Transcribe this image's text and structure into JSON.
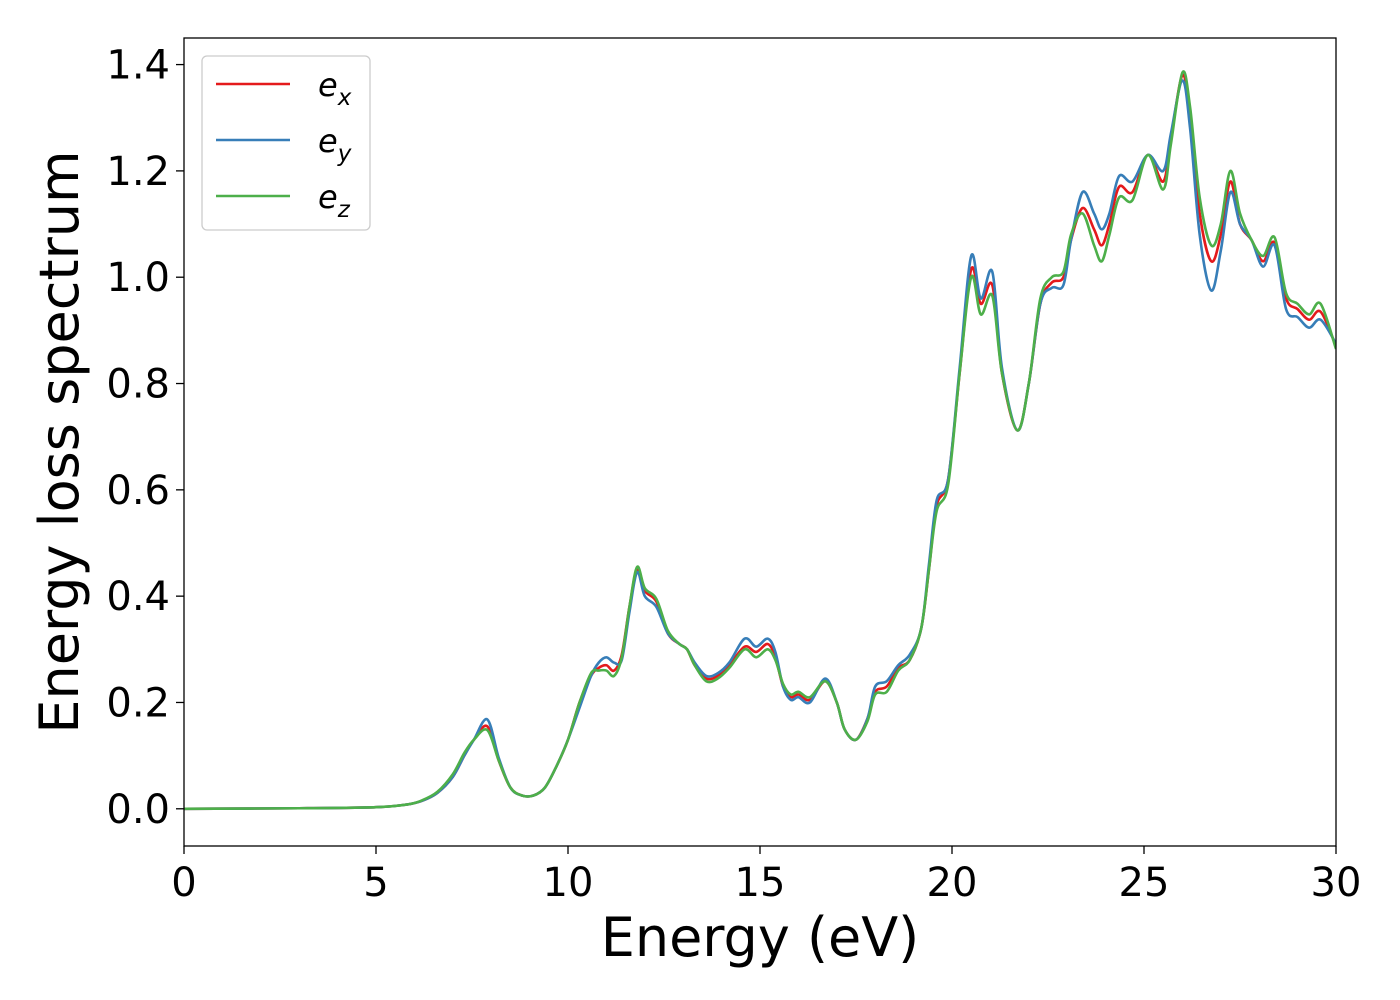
{
  "chart_data": {
    "type": "line",
    "title": "",
    "xlabel": "Energy (eV)",
    "ylabel": "Energy loss spectrum",
    "xlim": [
      0,
      30
    ],
    "ylim": [
      -0.07,
      1.45
    ],
    "xticks": [
      0,
      5,
      10,
      15,
      20,
      25,
      30
    ],
    "yticks": [
      0.0,
      0.2,
      0.4,
      0.6,
      0.8,
      1.0,
      1.2,
      1.4
    ],
    "xtick_labels": [
      "0",
      "5",
      "10",
      "15",
      "20",
      "25",
      "30"
    ],
    "ytick_labels": [
      "0.0",
      "0.2",
      "0.4",
      "0.6",
      "0.8",
      "1.0",
      "1.2",
      "1.4"
    ],
    "grid": false,
    "legend_position": "top-left",
    "series": [
      {
        "name": "e",
        "subscript": "x",
        "color": "#e41a1c",
        "x": [
          0,
          3,
          5,
          5.8,
          6.2,
          6.6,
          7.0,
          7.3,
          7.55,
          7.9,
          8.2,
          8.5,
          8.8,
          9.1,
          9.4,
          9.7,
          10.0,
          10.3,
          10.6,
          10.8,
          11.0,
          11.2,
          11.4,
          11.6,
          11.8,
          12.0,
          12.3,
          12.6,
          12.9,
          13.1,
          13.3,
          13.6,
          13.9,
          14.2,
          14.6,
          14.9,
          15.2,
          15.4,
          15.6,
          15.8,
          16.0,
          16.3,
          16.7,
          17.0,
          17.2,
          17.5,
          17.8,
          18.0,
          18.3,
          18.6,
          18.9,
          19.2,
          19.4,
          19.6,
          19.9,
          20.2,
          20.5,
          20.75,
          21.05,
          21.3,
          21.7,
          22.0,
          22.3,
          22.6,
          22.9,
          23.1,
          23.4,
          23.7,
          23.9,
          24.1,
          24.35,
          24.7,
          25.1,
          25.5,
          25.7,
          26.0,
          26.2,
          26.45,
          26.75,
          27.0,
          27.25,
          27.5,
          27.8,
          28.1,
          28.4,
          28.7,
          29.0,
          29.3,
          29.6,
          30.0
        ],
        "values": [
          0.0,
          0.001,
          0.003,
          0.008,
          0.015,
          0.03,
          0.06,
          0.1,
          0.13,
          0.155,
          0.09,
          0.04,
          0.025,
          0.025,
          0.04,
          0.08,
          0.13,
          0.2,
          0.25,
          0.265,
          0.27,
          0.26,
          0.29,
          0.38,
          0.45,
          0.41,
          0.39,
          0.33,
          0.31,
          0.3,
          0.27,
          0.245,
          0.25,
          0.27,
          0.305,
          0.295,
          0.31,
          0.285,
          0.23,
          0.21,
          0.215,
          0.205,
          0.24,
          0.2,
          0.15,
          0.13,
          0.17,
          0.22,
          0.23,
          0.265,
          0.28,
          0.34,
          0.45,
          0.57,
          0.62,
          0.82,
          1.015,
          0.95,
          0.985,
          0.82,
          0.712,
          0.8,
          0.95,
          0.99,
          1.0,
          1.07,
          1.13,
          1.09,
          1.06,
          1.1,
          1.17,
          1.16,
          1.23,
          1.18,
          1.26,
          1.38,
          1.3,
          1.12,
          1.03,
          1.08,
          1.18,
          1.1,
          1.07,
          1.03,
          1.065,
          0.96,
          0.94,
          0.92,
          0.935,
          0.87
        ]
      },
      {
        "name": "e",
        "subscript": "y",
        "color": "#377eb8",
        "x": [
          0,
          3,
          5,
          5.8,
          6.2,
          6.6,
          7.0,
          7.3,
          7.55,
          7.9,
          8.2,
          8.5,
          8.8,
          9.1,
          9.4,
          9.7,
          10.0,
          10.3,
          10.6,
          10.8,
          11.0,
          11.2,
          11.4,
          11.6,
          11.8,
          12.0,
          12.3,
          12.6,
          12.9,
          13.1,
          13.3,
          13.6,
          13.9,
          14.2,
          14.6,
          14.9,
          15.2,
          15.4,
          15.6,
          15.8,
          16.0,
          16.3,
          16.7,
          17.0,
          17.2,
          17.5,
          17.8,
          18.0,
          18.3,
          18.6,
          18.9,
          19.2,
          19.4,
          19.6,
          19.9,
          20.2,
          20.5,
          20.75,
          21.05,
          21.3,
          21.7,
          22.0,
          22.3,
          22.6,
          22.9,
          23.1,
          23.4,
          23.7,
          23.9,
          24.1,
          24.35,
          24.7,
          25.1,
          25.5,
          25.7,
          26.0,
          26.2,
          26.45,
          26.75,
          27.0,
          27.25,
          27.5,
          27.8,
          28.1,
          28.4,
          28.7,
          29.0,
          29.3,
          29.6,
          30.0
        ],
        "values": [
          0.0,
          0.001,
          0.003,
          0.008,
          0.015,
          0.03,
          0.06,
          0.1,
          0.13,
          0.168,
          0.095,
          0.04,
          0.025,
          0.025,
          0.04,
          0.08,
          0.13,
          0.19,
          0.25,
          0.275,
          0.285,
          0.275,
          0.28,
          0.37,
          0.445,
          0.4,
          0.38,
          0.33,
          0.31,
          0.3,
          0.275,
          0.25,
          0.255,
          0.275,
          0.32,
          0.305,
          0.32,
          0.295,
          0.23,
          0.205,
          0.21,
          0.2,
          0.245,
          0.2,
          0.15,
          0.13,
          0.17,
          0.23,
          0.24,
          0.27,
          0.29,
          0.34,
          0.46,
          0.58,
          0.62,
          0.83,
          1.04,
          0.96,
          1.01,
          0.83,
          0.712,
          0.8,
          0.95,
          0.98,
          0.985,
          1.07,
          1.16,
          1.12,
          1.09,
          1.12,
          1.19,
          1.18,
          1.23,
          1.2,
          1.27,
          1.37,
          1.28,
          1.08,
          0.975,
          1.05,
          1.16,
          1.1,
          1.07,
          1.02,
          1.06,
          0.94,
          0.925,
          0.905,
          0.92,
          0.875
        ]
      },
      {
        "name": "e",
        "subscript": "z",
        "color": "#4daf4a",
        "x": [
          0,
          3,
          5,
          5.8,
          6.2,
          6.6,
          7.0,
          7.3,
          7.55,
          7.9,
          8.2,
          8.5,
          8.8,
          9.1,
          9.4,
          9.7,
          10.0,
          10.3,
          10.6,
          10.8,
          11.0,
          11.2,
          11.4,
          11.6,
          11.8,
          12.0,
          12.3,
          12.6,
          12.9,
          13.1,
          13.3,
          13.6,
          13.9,
          14.2,
          14.6,
          14.9,
          15.2,
          15.4,
          15.6,
          15.8,
          16.0,
          16.3,
          16.7,
          17.0,
          17.2,
          17.5,
          17.8,
          18.0,
          18.3,
          18.6,
          18.9,
          19.2,
          19.4,
          19.6,
          19.9,
          20.2,
          20.5,
          20.75,
          21.05,
          21.3,
          21.7,
          22.0,
          22.3,
          22.6,
          22.9,
          23.1,
          23.4,
          23.7,
          23.9,
          24.1,
          24.35,
          24.7,
          25.1,
          25.5,
          25.7,
          26.0,
          26.2,
          26.45,
          26.75,
          27.0,
          27.25,
          27.5,
          27.8,
          28.1,
          28.4,
          28.7,
          29.0,
          29.3,
          29.6,
          30.0
        ],
        "values": [
          0.0,
          0.001,
          0.003,
          0.008,
          0.016,
          0.032,
          0.065,
          0.105,
          0.13,
          0.148,
          0.09,
          0.04,
          0.025,
          0.025,
          0.04,
          0.08,
          0.13,
          0.2,
          0.255,
          0.26,
          0.26,
          0.25,
          0.285,
          0.38,
          0.455,
          0.415,
          0.395,
          0.335,
          0.31,
          0.3,
          0.27,
          0.24,
          0.245,
          0.265,
          0.3,
          0.285,
          0.3,
          0.28,
          0.235,
          0.215,
          0.22,
          0.21,
          0.24,
          0.2,
          0.15,
          0.13,
          0.165,
          0.215,
          0.22,
          0.26,
          0.28,
          0.34,
          0.45,
          0.56,
          0.61,
          0.82,
          1.0,
          0.93,
          0.965,
          0.82,
          0.712,
          0.8,
          0.96,
          1.0,
          1.01,
          1.08,
          1.12,
          1.06,
          1.03,
          1.08,
          1.15,
          1.145,
          1.23,
          1.165,
          1.25,
          1.385,
          1.32,
          1.15,
          1.06,
          1.1,
          1.2,
          1.12,
          1.07,
          1.04,
          1.075,
          0.97,
          0.95,
          0.93,
          0.95,
          0.865
        ]
      }
    ]
  }
}
